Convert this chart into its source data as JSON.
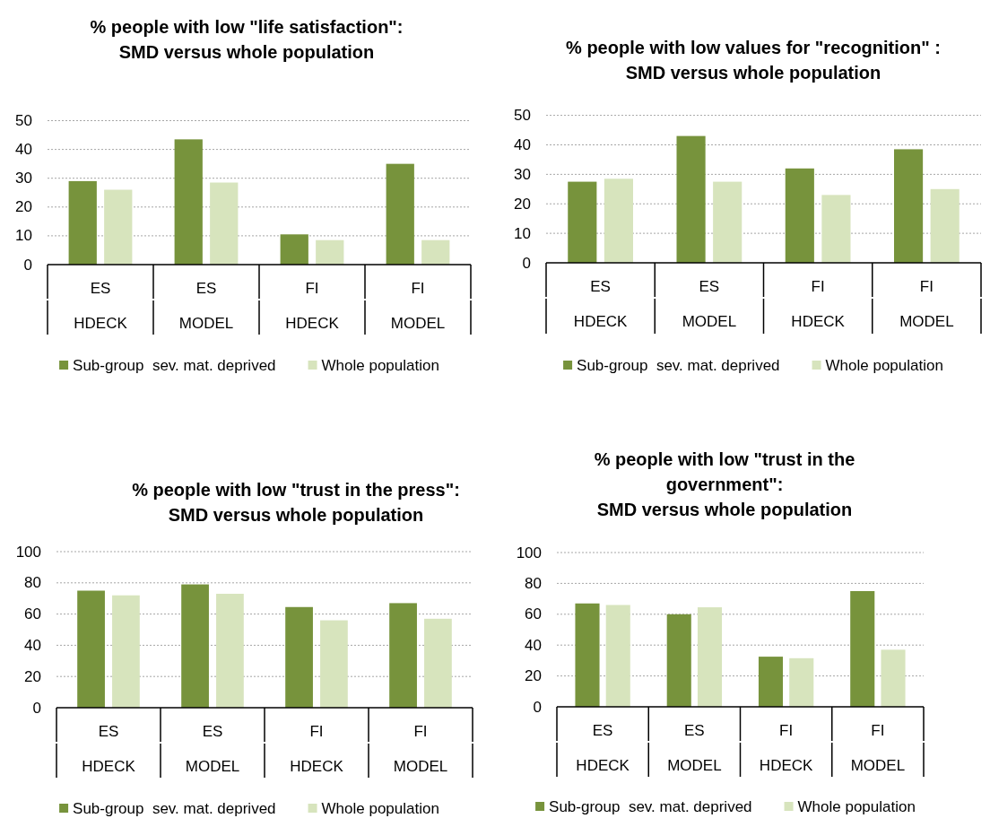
{
  "chart_data": [
    {
      "type": "bar",
      "title": "% people with low \"life satisfaction\":\nSMD versus whole population",
      "categories": [
        "ES\nHDECK",
        "ES\nMODEL",
        "FI\nHDECK",
        "FI\nMODEL"
      ],
      "series": [
        {
          "name": "Sub-group  sev. mat. deprived",
          "color": "#77933c",
          "values": [
            29,
            43.5,
            10.5,
            35
          ]
        },
        {
          "name": "Whole population",
          "color": "#d7e4bd",
          "values": [
            26,
            28.5,
            8.5,
            8.5
          ]
        }
      ],
      "ylim": [
        0,
        50
      ],
      "yticks": [
        0,
        10,
        20,
        30,
        40,
        50
      ],
      "grid": "y",
      "legend": "bottom"
    },
    {
      "type": "bar",
      "title": "% people with low values for \"recognition\" :\nSMD versus whole population",
      "categories": [
        "ES\nHDECK",
        "ES\nMODEL",
        "FI\nHDECK",
        "FI\nMODEL"
      ],
      "series": [
        {
          "name": "Sub-group  sev. mat. deprived",
          "color": "#77933c",
          "values": [
            27.5,
            43,
            32,
            38.5
          ]
        },
        {
          "name": "Whole population",
          "color": "#d7e4bd",
          "values": [
            28.5,
            27.5,
            23,
            25
          ]
        }
      ],
      "ylim": [
        0,
        50
      ],
      "yticks": [
        0,
        10,
        20,
        30,
        40,
        50
      ],
      "grid": "y",
      "legend": "bottom"
    },
    {
      "type": "bar",
      "title": "% people with low \"trust in the press\":\nSMD versus whole population",
      "categories": [
        "ES\nHDECK",
        "ES\nMODEL",
        "FI\nHDECK",
        "FI\nMODEL"
      ],
      "series": [
        {
          "name": "Sub-group  sev. mat. deprived",
          "color": "#77933c",
          "values": [
            75,
            79,
            64.5,
            67
          ]
        },
        {
          "name": "Whole population",
          "color": "#d7e4bd",
          "values": [
            72,
            73,
            56,
            57
          ]
        }
      ],
      "ylim": [
        0,
        100
      ],
      "yticks": [
        0,
        20,
        40,
        60,
        80,
        100
      ],
      "grid": "y",
      "legend": "bottom"
    },
    {
      "type": "bar",
      "title": "% people with low \"trust in the\ngovernment\":\nSMD versus whole population",
      "categories": [
        "ES\nHDECK",
        "ES\nMODEL",
        "FI\nHDECK",
        "FI\nMODEL"
      ],
      "series": [
        {
          "name": "Sub-group  sev. mat. deprived",
          "color": "#77933c",
          "values": [
            67,
            60,
            32.5,
            75
          ]
        },
        {
          "name": "Whole population",
          "color": "#d7e4bd",
          "values": [
            66,
            64.5,
            31.5,
            37
          ]
        }
      ],
      "ylim": [
        0,
        100
      ],
      "yticks": [
        0,
        20,
        40,
        60,
        80,
        100
      ],
      "grid": "y",
      "legend": "bottom"
    }
  ]
}
